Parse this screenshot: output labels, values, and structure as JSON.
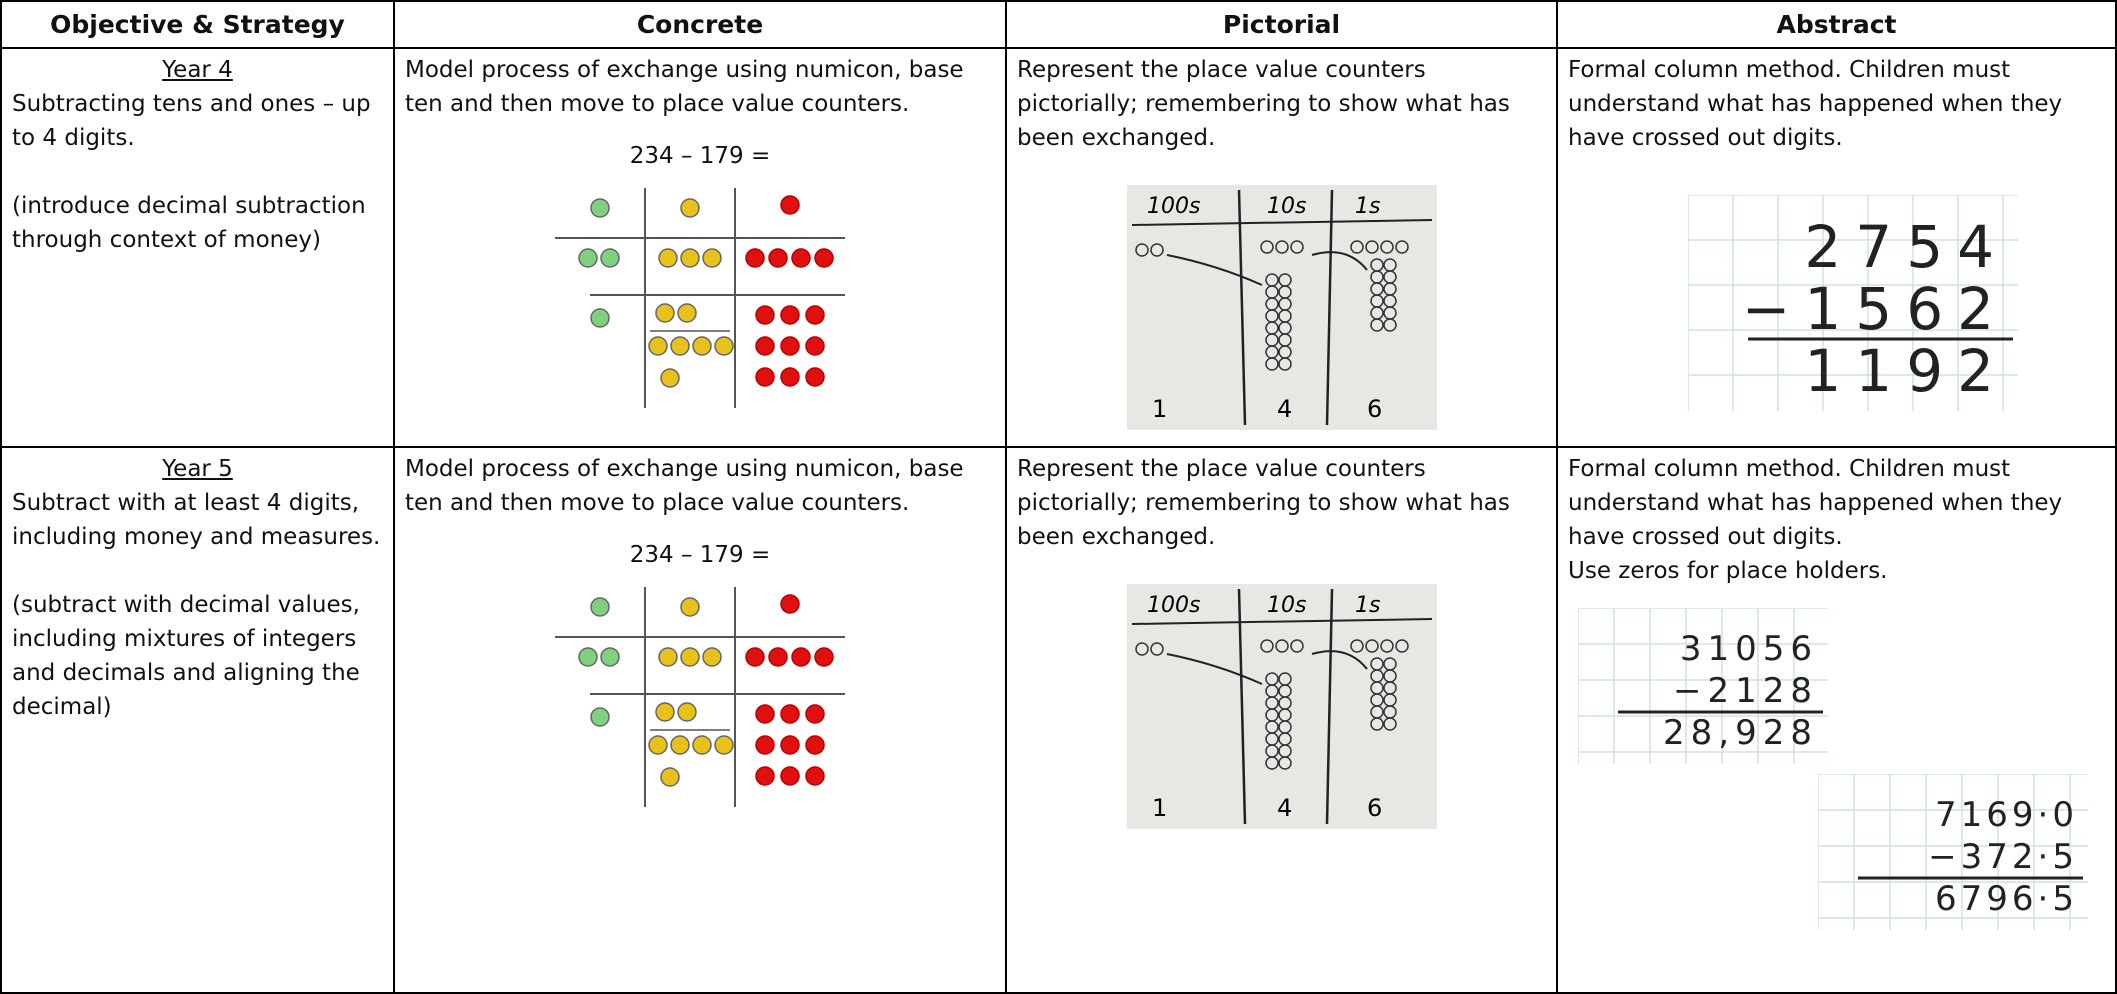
{
  "table": {
    "headers": [
      "Objective & Strategy",
      "Concrete",
      "Pictorial",
      "Abstract"
    ],
    "rows": [
      {
        "objective": {
          "year": "Year 4",
          "paragraphs": [
            "Subtracting tens and ones – up to 4 digits.",
            "(introduce decimal subtraction through context of money)"
          ]
        },
        "concrete": {
          "text": "Model process of exchange using numicon, base ten and then move to place value counters.",
          "equation": "234 – 179 ="
        },
        "pictorial": {
          "text": "Represent the place value counters pictorially; remembering to show what has been exchanged.",
          "photo": {
            "columns": [
              "100s",
              "10s",
              "1s"
            ],
            "results": [
              "1",
              "4",
              "6"
            ]
          }
        },
        "abstract": {
          "paragraphs": [
            "Formal column method. Children must understand what has happened when they have crossed out digits."
          ],
          "workings": [
            [
              "2754",
              "−1562",
              "1192"
            ]
          ]
        }
      },
      {
        "objective": {
          "year": "Year 5",
          "paragraphs": [
            "Subtract with at least 4 digits, including money and measures.",
            "(subtract with decimal values, including mixtures of integers and decimals and aligning the decimal)"
          ]
        },
        "concrete": {
          "text": "Model process of exchange using numicon, base ten and then move to place value counters.",
          "equation": "234 – 179 ="
        },
        "pictorial": {
          "text": "Represent the place value counters pictorially; remembering to show what has been exchanged.",
          "photo": {
            "columns": [
              "100s",
              "10s",
              "1s"
            ],
            "results": [
              "1",
              "4",
              "6"
            ]
          }
        },
        "abstract": {
          "paragraphs": [
            "Formal column method. Children must understand what has happened when they have crossed out digits.",
            "Use zeros for place holders."
          ],
          "workings": [
            [
              "31056",
              "−2128",
              "28,928"
            ],
            [
              "7169·0",
              "−372·5",
              "6796·5"
            ]
          ]
        }
      }
    ]
  }
}
